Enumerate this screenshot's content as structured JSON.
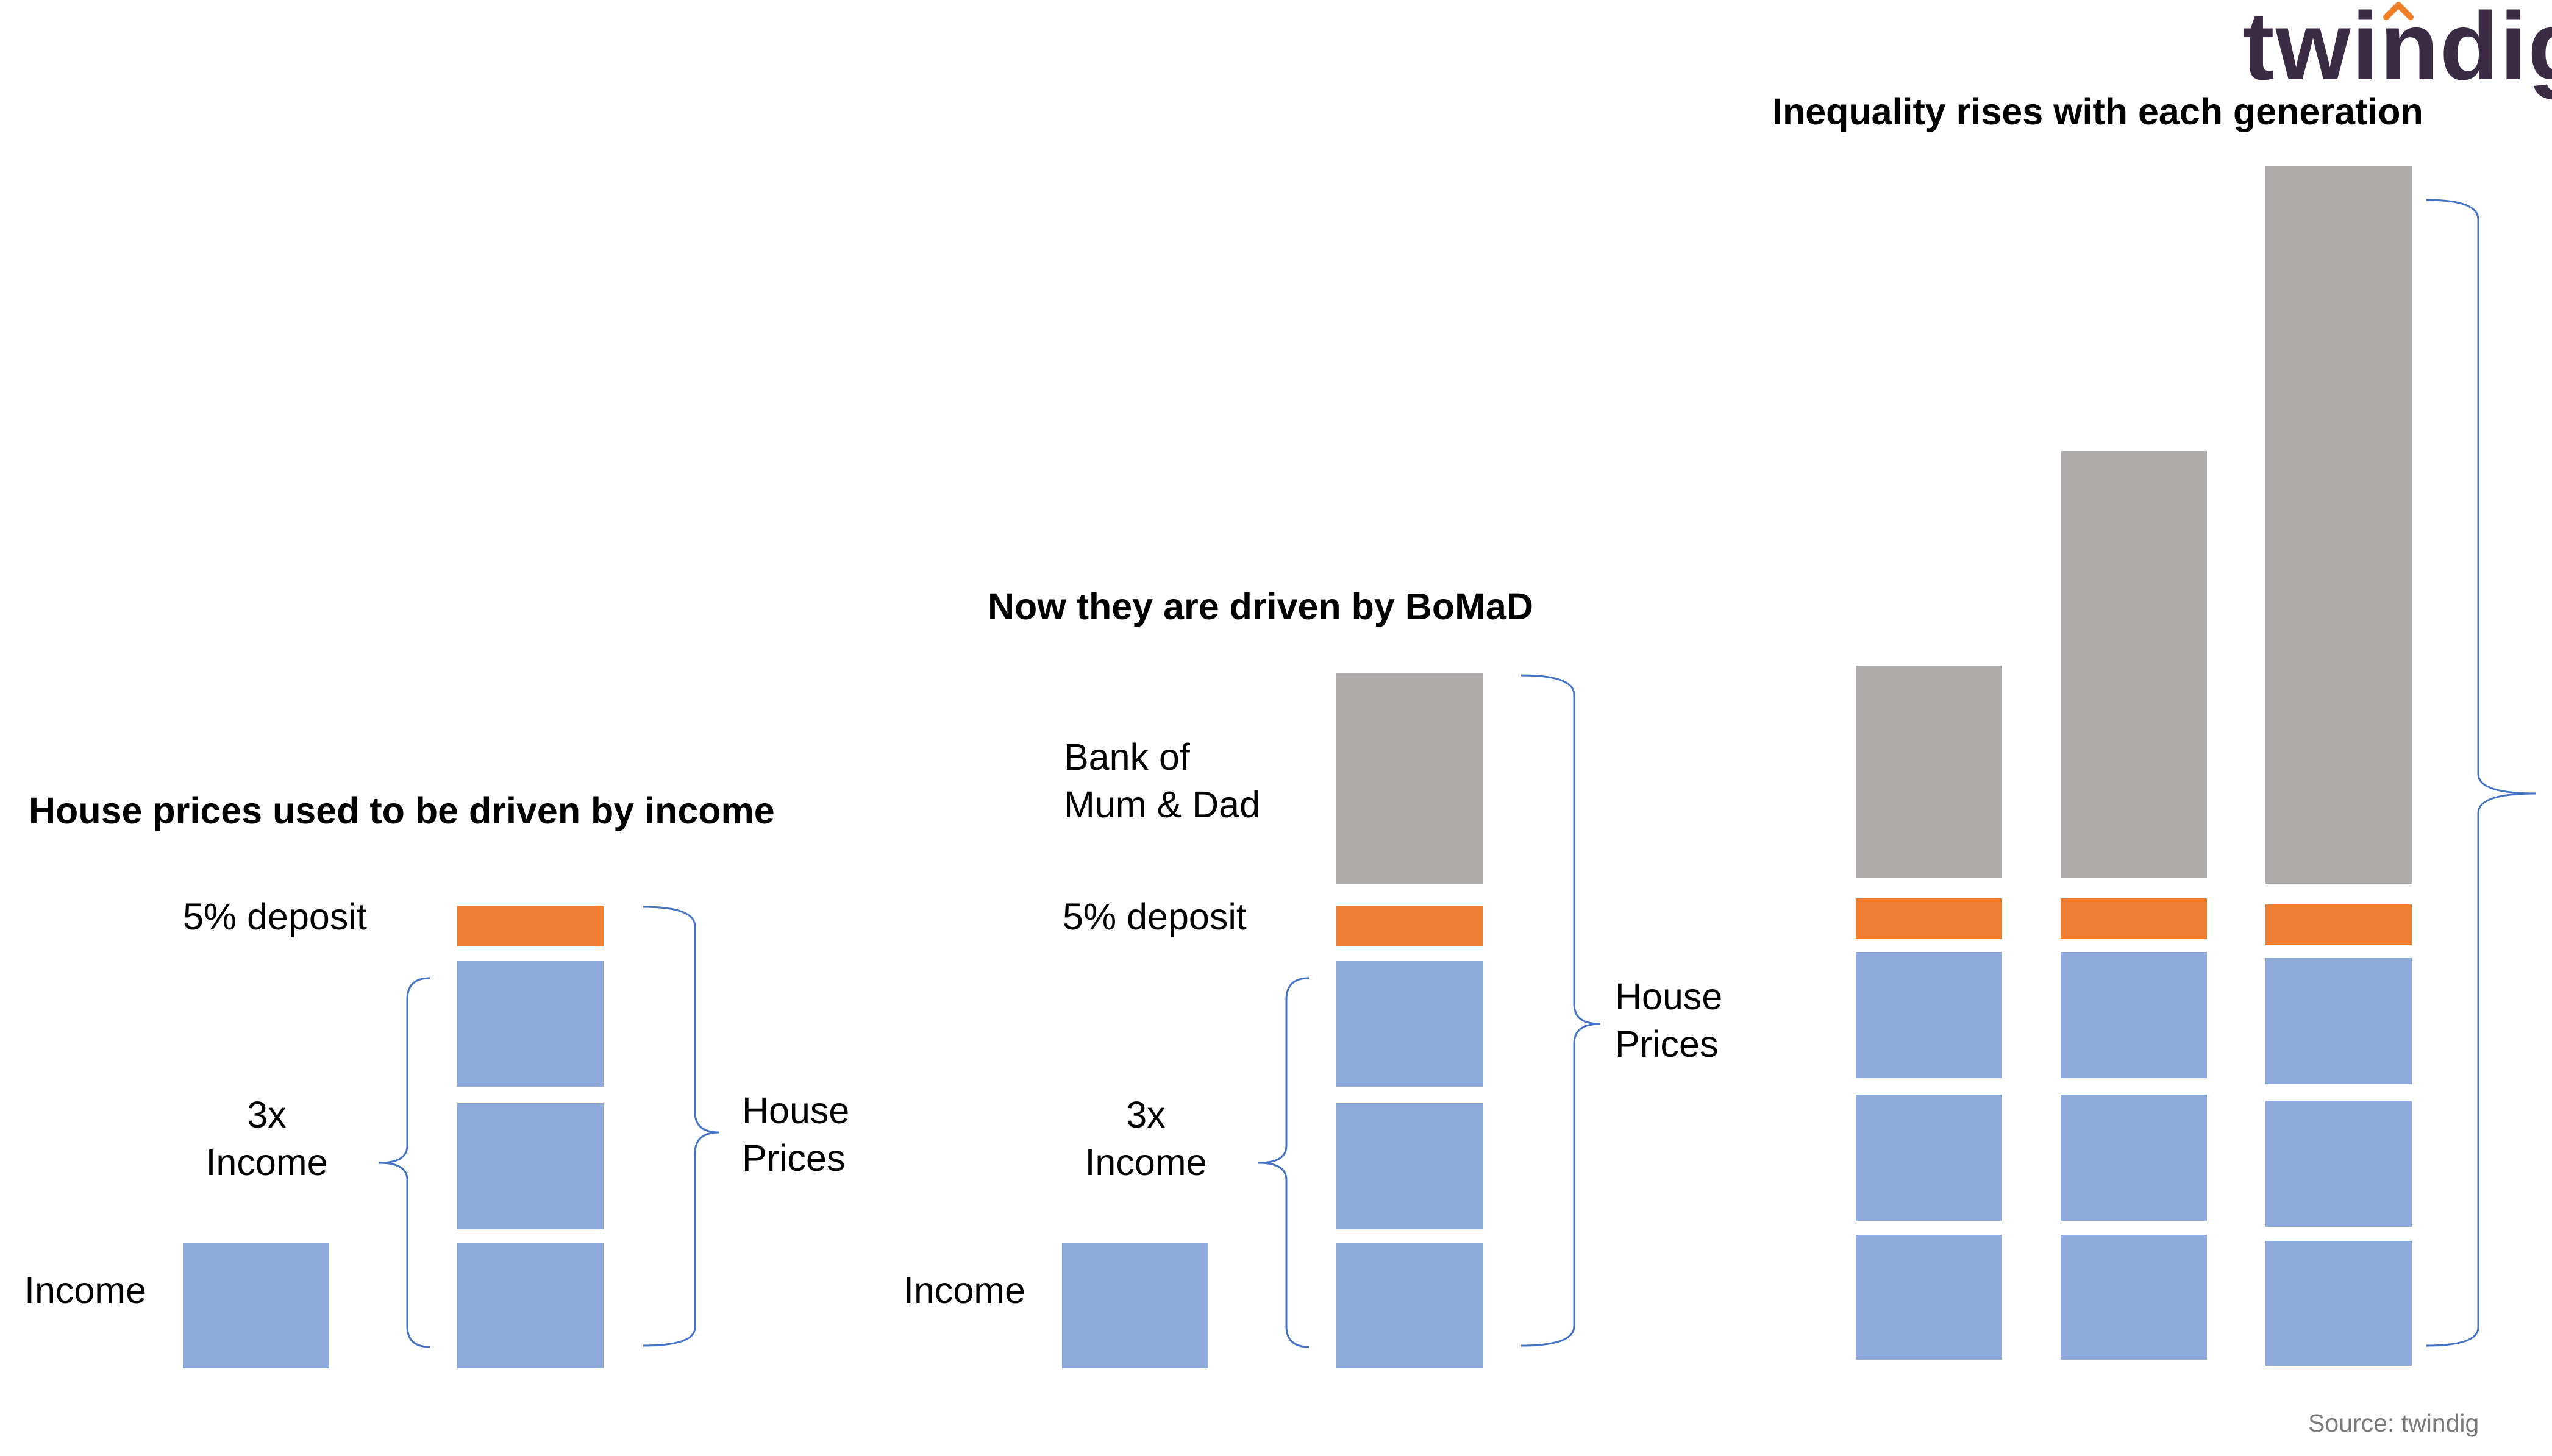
{
  "logo": {
    "text": "twindig",
    "accent_color": "#f07e26",
    "text_color": "#3b2b45"
  },
  "source": "Source: twindig",
  "colors": {
    "income": "#8eaadb",
    "deposit": "#ed7d31",
    "bomad": "#aeaaaa",
    "bracket": "#4472c4"
  },
  "panels": [
    {
      "title": "House prices used to be driven by income",
      "labels": {
        "income": "Income",
        "multiple_line1": "3x",
        "multiple_line2": "Income",
        "deposit": "5% deposit",
        "house_prices_line1": "House",
        "house_prices_line2": "Prices"
      }
    },
    {
      "title": "Now they are driven by BoMaD",
      "labels": {
        "income": "Income",
        "multiple_line1": "3x",
        "multiple_line2": "Income",
        "deposit": "5% deposit",
        "bomad_line1": "Bank of",
        "bomad_line2": "Mum & Dad",
        "house_prices_line1": "House",
        "house_prices_line2": "Prices"
      }
    },
    {
      "title": "Inequality rises with each generation",
      "generations": [
        {
          "income_blocks": 3,
          "deposit": 1,
          "bomad_relative": 1.0
        },
        {
          "income_blocks": 3,
          "deposit": 1,
          "bomad_relative": 2.0
        },
        {
          "income_blocks": 3,
          "deposit": 1,
          "bomad_relative": 3.4
        }
      ]
    }
  ]
}
